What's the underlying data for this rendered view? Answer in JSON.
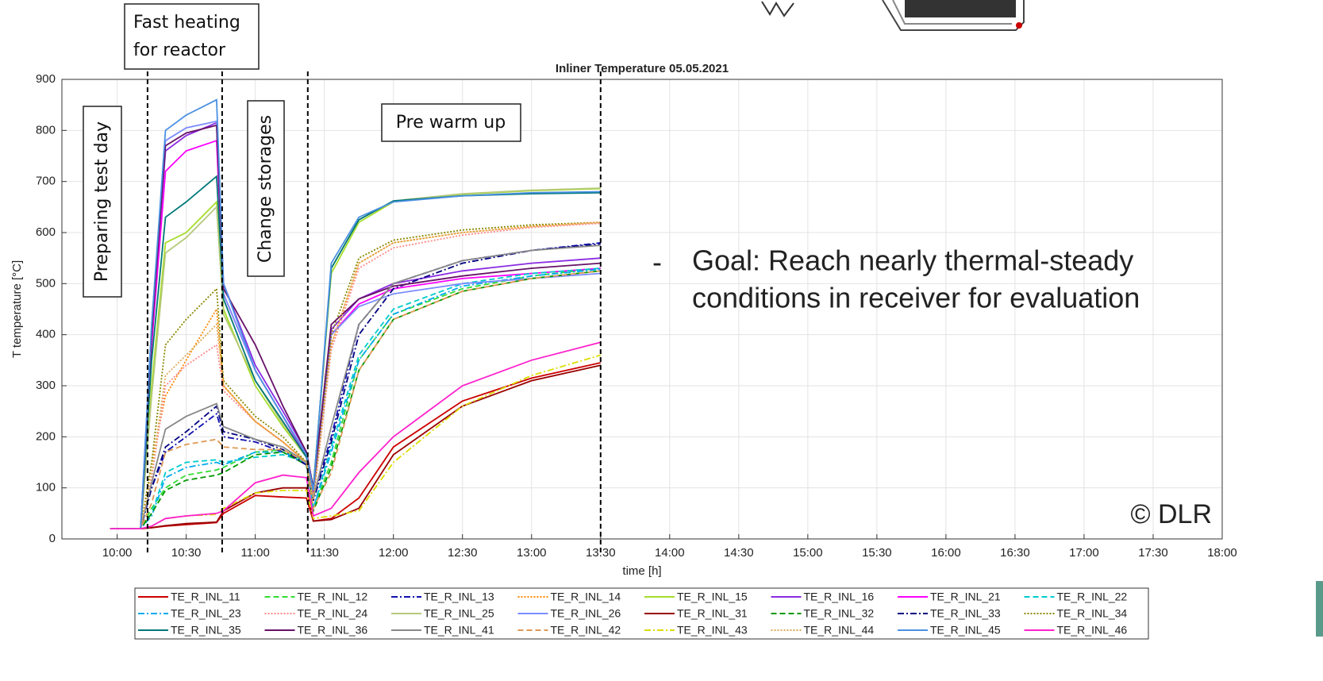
{
  "chart_data": {
    "type": "line",
    "title": "Inliner Temperature 05.05.2021",
    "x_label": "time [h]",
    "y_label": "T temperature [°C]",
    "x": [
      9.95,
      10.17,
      10.25,
      10.35,
      10.5,
      10.72,
      10.77,
      11.0,
      11.2,
      11.37,
      11.42,
      11.55,
      11.75,
      12.0,
      12.5,
      13.0,
      13.5
    ],
    "xlim": [
      9.6,
      18
    ],
    "xticks": [
      {
        "value": 10,
        "label": "10:00"
      },
      {
        "value": 10.5,
        "label": "10:30"
      },
      {
        "value": 11,
        "label": "11:00"
      },
      {
        "value": 11.5,
        "label": "11:30"
      },
      {
        "value": 12,
        "label": "12:00"
      },
      {
        "value": 12.5,
        "label": "12:30"
      },
      {
        "value": 13,
        "label": "13:00"
      },
      {
        "value": 13.5,
        "label": "13:30"
      },
      {
        "value": 14,
        "label": "14:00"
      },
      {
        "value": 14.5,
        "label": "14:30"
      },
      {
        "value": 15,
        "label": "15:00"
      },
      {
        "value": 15.5,
        "label": "15:30"
      },
      {
        "value": 16,
        "label": "16:00"
      },
      {
        "value": 16.5,
        "label": "16:30"
      },
      {
        "value": 17,
        "label": "17:00"
      },
      {
        "value": 17.5,
        "label": "17:30"
      },
      {
        "value": 18,
        "label": "18:00"
      }
    ],
    "ylim": [
      0,
      900
    ],
    "yticks": [
      0,
      100,
      200,
      300,
      400,
      500,
      600,
      700,
      800,
      900
    ],
    "grid": true,
    "phase_lines": [
      10.22,
      10.76,
      11.38,
      13.5
    ],
    "annotations": {
      "fast_heating": [
        "Fast heating",
        "for reactor"
      ],
      "preparing": "Preparing test day",
      "change": "Change storages",
      "pre_warm": "Pre warm up",
      "bullet": "-",
      "goal": [
        "Goal: Reach nearly thermal-steady",
        "conditions in receiver for evaluation"
      ],
      "copyright": "© DLR"
    },
    "series": [
      {
        "name": "TE_R_INL_11",
        "color": "#cc0000",
        "style": "solid",
        "values": [
          20,
          20,
          22,
          25,
          28,
          32,
          50,
          85,
          82,
          80,
          35,
          40,
          80,
          180,
          270,
          315,
          345
        ]
      },
      {
        "name": "TE_R_INL_12",
        "color": "#33dd33",
        "style": "dashed",
        "values": [
          20,
          20,
          60,
          100,
          125,
          135,
          140,
          170,
          175,
          150,
          60,
          150,
          350,
          440,
          490,
          515,
          530
        ]
      },
      {
        "name": "TE_R_INL_13",
        "color": "#1010b0",
        "style": "dashdot",
        "values": [
          20,
          20,
          100,
          170,
          200,
          245,
          200,
          190,
          170,
          145,
          80,
          200,
          420,
          500,
          545,
          565,
          580
        ]
      },
      {
        "name": "TE_R_INL_14",
        "color": "#ff8800",
        "style": "dotted",
        "values": [
          20,
          20,
          150,
          280,
          350,
          450,
          300,
          230,
          190,
          150,
          80,
          380,
          540,
          580,
          600,
          612,
          620
        ]
      },
      {
        "name": "TE_R_INL_15",
        "color": "#a6dd2a",
        "style": "solid",
        "values": [
          20,
          20,
          300,
          580,
          600,
          660,
          450,
          300,
          220,
          160,
          100,
          520,
          620,
          660,
          675,
          682,
          686
        ]
      },
      {
        "name": "TE_R_INL_16",
        "color": "#8a2be2",
        "style": "solid",
        "values": [
          20,
          20,
          400,
          760,
          790,
          815,
          500,
          340,
          250,
          170,
          100,
          410,
          470,
          500,
          525,
          540,
          550
        ]
      },
      {
        "name": "TE_R_INL_21",
        "color": "#ff00ff",
        "style": "solid",
        "values": [
          20,
          20,
          380,
          720,
          760,
          780,
          480,
          330,
          240,
          160,
          90,
          400,
          460,
          490,
          510,
          520,
          530
        ]
      },
      {
        "name": "TE_R_INL_22",
        "color": "#00cccc",
        "style": "dashed",
        "values": [
          20,
          20,
          50,
          130,
          150,
          155,
          150,
          160,
          165,
          150,
          60,
          180,
          360,
          450,
          500,
          520,
          530
        ]
      },
      {
        "name": "TE_R_INL_23",
        "color": "#00aaee",
        "style": "dashdot",
        "values": [
          20,
          20,
          45,
          120,
          140,
          150,
          145,
          170,
          170,
          150,
          60,
          170,
          350,
          440,
          495,
          515,
          528
        ]
      },
      {
        "name": "TE_R_INL_24",
        "color": "#ff8888",
        "style": "dotted",
        "values": [
          20,
          20,
          120,
          300,
          340,
          380,
          290,
          230,
          190,
          150,
          75,
          370,
          530,
          570,
          595,
          610,
          618
        ]
      },
      {
        "name": "TE_R_INL_25",
        "color": "#b5c97a",
        "style": "solid",
        "values": [
          20,
          20,
          280,
          560,
          590,
          650,
          440,
          310,
          225,
          160,
          100,
          530,
          625,
          662,
          676,
          683,
          687
        ]
      },
      {
        "name": "TE_R_INL_26",
        "color": "#7b8cff",
        "style": "solid",
        "values": [
          20,
          20,
          420,
          780,
          805,
          818,
          480,
          330,
          240,
          165,
          95,
          400,
          455,
          480,
          500,
          510,
          520
        ]
      },
      {
        "name": "TE_R_INL_31",
        "color": "#990000",
        "style": "solid",
        "values": [
          20,
          20,
          22,
          26,
          30,
          33,
          55,
          90,
          100,
          100,
          35,
          38,
          60,
          165,
          260,
          310,
          340
        ]
      },
      {
        "name": "TE_R_INL_32",
        "color": "#009900",
        "style": "dashed",
        "values": [
          20,
          20,
          50,
          95,
          115,
          125,
          130,
          165,
          170,
          145,
          55,
          140,
          330,
          430,
          485,
          510,
          525
        ]
      },
      {
        "name": "TE_R_INL_33",
        "color": "#000080",
        "style": "dashdot",
        "values": [
          20,
          20,
          100,
          180,
          210,
          260,
          210,
          195,
          175,
          145,
          75,
          190,
          400,
          490,
          540,
          565,
          578
        ]
      },
      {
        "name": "TE_R_INL_34",
        "color": "#888800",
        "style": "dotted",
        "values": [
          20,
          20,
          150,
          380,
          430,
          490,
          310,
          240,
          200,
          150,
          80,
          400,
          550,
          585,
          605,
          615,
          620
        ]
      },
      {
        "name": "TE_R_INL_35",
        "color": "#007777",
        "style": "solid",
        "values": [
          20,
          20,
          350,
          630,
          660,
          710,
          470,
          310,
          230,
          160,
          100,
          530,
          625,
          662,
          672,
          676,
          678
        ]
      },
      {
        "name": "TE_R_INL_36",
        "color": "#661166",
        "style": "solid",
        "values": [
          20,
          20,
          400,
          770,
          795,
          810,
          490,
          380,
          260,
          170,
          100,
          420,
          470,
          495,
          515,
          530,
          540
        ]
      },
      {
        "name": "TE_R_INL_41",
        "color": "#888888",
        "style": "solid",
        "values": [
          20,
          20,
          110,
          215,
          240,
          265,
          220,
          195,
          180,
          150,
          80,
          220,
          420,
          500,
          545,
          565,
          575
        ]
      },
      {
        "name": "TE_R_INL_42",
        "color": "#dd9955",
        "style": "dashed",
        "values": [
          20,
          20,
          70,
          170,
          185,
          195,
          180,
          175,
          175,
          150,
          60,
          130,
          330,
          430,
          485,
          510,
          525
        ]
      },
      {
        "name": "TE_R_INL_43",
        "color": "#dddd00",
        "style": "dashdot",
        "values": [
          20,
          20,
          25,
          40,
          45,
          48,
          60,
          90,
          95,
          95,
          40,
          45,
          55,
          150,
          260,
          320,
          360
        ]
      },
      {
        "name": "TE_R_INL_44",
        "color": "#ddaa55",
        "style": "dotted",
        "values": [
          20,
          20,
          130,
          320,
          360,
          420,
          300,
          230,
          190,
          150,
          78,
          380,
          540,
          580,
          600,
          612,
          620
        ]
      },
      {
        "name": "TE_R_INL_45",
        "color": "#4a90e2",
        "style": "solid",
        "values": [
          20,
          20,
          420,
          800,
          830,
          860,
          500,
          330,
          240,
          165,
          95,
          540,
          630,
          660,
          672,
          678,
          680
        ]
      },
      {
        "name": "TE_R_INL_46",
        "color": "#ff22cc",
        "style": "solid",
        "values": [
          20,
          20,
          25,
          40,
          45,
          50,
          55,
          110,
          125,
          120,
          45,
          60,
          130,
          200,
          300,
          350,
          385
        ]
      }
    ]
  }
}
